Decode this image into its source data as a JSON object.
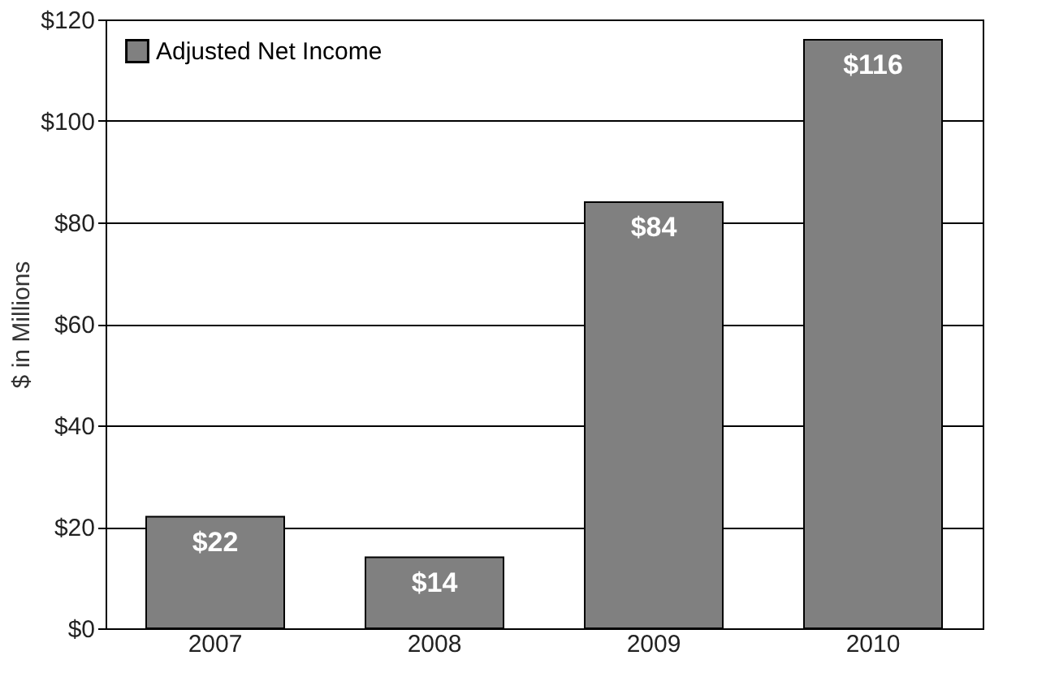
{
  "chart_data": {
    "type": "bar",
    "ylabel": "$ in Millions",
    "categories": [
      "2007",
      "2008",
      "2009",
      "2010"
    ],
    "series": [
      {
        "name": "Adjusted Net Income",
        "color": "#808080",
        "values": [
          22,
          14,
          84,
          116
        ],
        "value_labels": [
          "$22",
          "$14",
          "$84",
          "$116"
        ]
      }
    ],
    "ylim": [
      0,
      120
    ],
    "yticks": [
      {
        "value": 0,
        "label": "$0"
      },
      {
        "value": 20,
        "label": "$20"
      },
      {
        "value": 40,
        "label": "$40"
      },
      {
        "value": 60,
        "label": "$60"
      },
      {
        "value": 80,
        "label": "$80"
      },
      {
        "value": 100,
        "label": "$100"
      },
      {
        "value": 120,
        "label": "$120"
      }
    ],
    "grid": "y",
    "legend": "top left"
  }
}
